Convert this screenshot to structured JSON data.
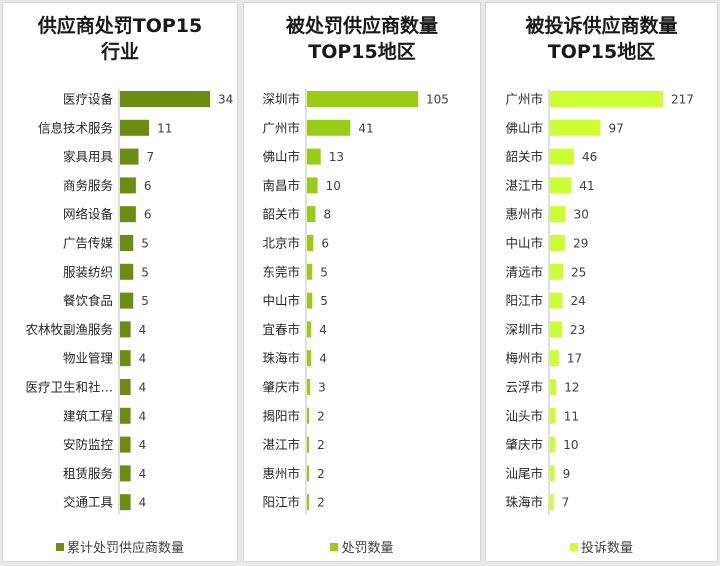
{
  "chart_data": [
    {
      "type": "bar",
      "orientation": "horizontal",
      "title": [
        "供应商处罚TOP15",
        "行业"
      ],
      "categories": [
        "医疗设备",
        "信息技术服务",
        "家具用具",
        "商务服务",
        "网络设备",
        "广告传媒",
        "服装纺织",
        "餐饮食品",
        "农林牧副渔服务",
        "物业管理",
        "医疗卫生和社…",
        "建筑工程",
        "安防监控",
        "租赁服务",
        "交通工具"
      ],
      "series": [
        {
          "name": "累计处罚供应商数量",
          "values": [
            34,
            11,
            7,
            6,
            6,
            5,
            5,
            5,
            4,
            4,
            4,
            4,
            4,
            4,
            4
          ],
          "color": "#6b8e12"
        }
      ],
      "xlim": [
        0,
        34
      ],
      "grid": false,
      "legend_position": "bottom"
    },
    {
      "type": "bar",
      "orientation": "horizontal",
      "title": [
        "被处罚供应商数量",
        "TOP15地区"
      ],
      "categories": [
        "深圳市",
        "广州市",
        "佛山市",
        "南昌市",
        "韶关市",
        "北京市",
        "东莞市",
        "中山市",
        "宜春市",
        "珠海市",
        "肇庆市",
        "揭阳市",
        "湛江市",
        "惠州市",
        "阳江市"
      ],
      "series": [
        {
          "name": "处罚数量",
          "values": [
            105,
            41,
            13,
            10,
            8,
            6,
            5,
            5,
            4,
            4,
            3,
            2,
            2,
            2,
            2
          ],
          "color": "#99cc14"
        }
      ],
      "xlim": [
        0,
        105
      ],
      "grid": false,
      "legend_position": "bottom"
    },
    {
      "type": "bar",
      "orientation": "horizontal",
      "title": [
        "被投诉供应商数量",
        "TOP15地区"
      ],
      "categories": [
        "广州市",
        "佛山市",
        "韶关市",
        "湛江市",
        "惠州市",
        "中山市",
        "清远市",
        "阳江市",
        "深圳市",
        "梅州市",
        "云浮市",
        "汕头市",
        "肇庆市",
        "汕尾市",
        "珠海市"
      ],
      "series": [
        {
          "name": "投诉数量",
          "values": [
            217,
            97,
            46,
            41,
            30,
            29,
            25,
            24,
            23,
            17,
            12,
            11,
            10,
            9,
            7
          ],
          "color": "#ccff33"
        }
      ],
      "xlim": [
        0,
        217
      ],
      "grid": false,
      "legend_position": "bottom"
    }
  ]
}
